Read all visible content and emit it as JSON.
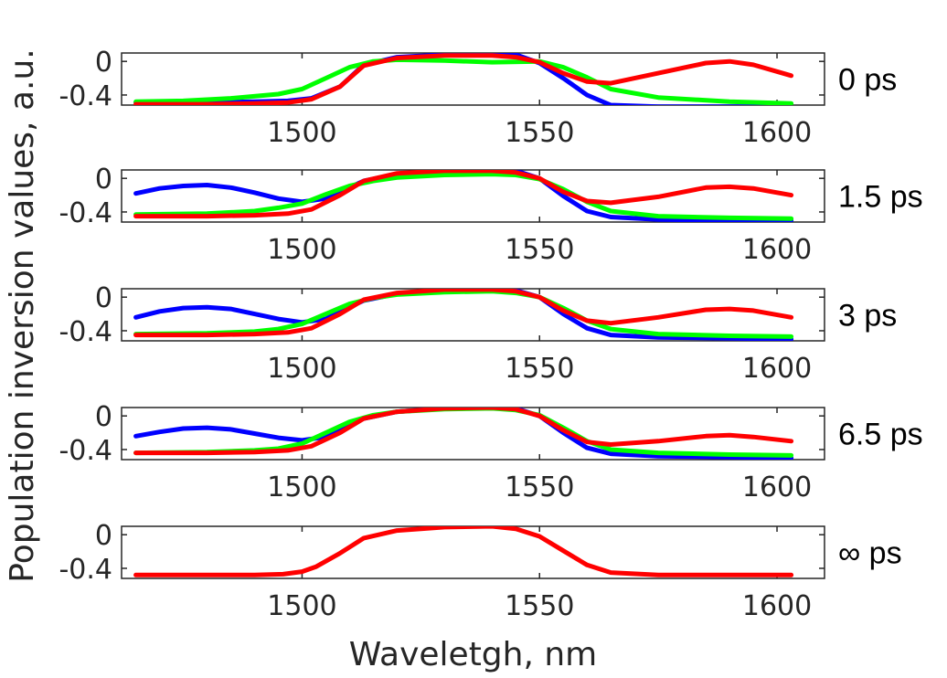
{
  "chart_data": {
    "type": "line",
    "ylabel": "Population inversion values, a.u.",
    "xlabel": "Waveletgh, nm",
    "xlim": [
      1462,
      1610
    ],
    "ylim": [
      -0.52,
      0.1
    ],
    "xticks": [
      1500,
      1550,
      1600
    ],
    "yticks": [
      0,
      -0.4
    ],
    "ytick_labels": [
      "0",
      "-0.4"
    ],
    "colors": {
      "blue": "#0000ff",
      "green": "#00ff00",
      "red": "#ff0000"
    },
    "grid": false,
    "panels": [
      {
        "label": "0 ps",
        "series": [
          {
            "color": "#0000ff",
            "x": [
              1465,
              1480,
              1490,
              1497,
              1502,
              1508,
              1513,
              1520,
              1530,
              1540,
              1545,
              1550,
              1555,
              1560,
              1565,
              1575,
              1590,
              1603
            ],
            "y": [
              -0.49,
              -0.49,
              -0.48,
              -0.47,
              -0.44,
              -0.3,
              -0.04,
              0.05,
              0.08,
              0.1,
              0.08,
              -0.02,
              -0.2,
              -0.4,
              -0.52,
              -0.54,
              -0.54,
              -0.54
            ]
          },
          {
            "color": "#00ff00",
            "x": [
              1465,
              1475,
              1485,
              1495,
              1500,
              1505,
              1510,
              1515,
              1520,
              1530,
              1540,
              1550,
              1555,
              1560,
              1565,
              1575,
              1590,
              1603
            ],
            "y": [
              -0.48,
              -0.47,
              -0.44,
              -0.39,
              -0.33,
              -0.2,
              -0.07,
              0.0,
              0.02,
              0.01,
              -0.01,
              0.0,
              -0.07,
              -0.19,
              -0.33,
              -0.43,
              -0.48,
              -0.5
            ]
          },
          {
            "color": "#ff0000",
            "x": [
              1465,
              1480,
              1490,
              1497,
              1502,
              1508,
              1513,
              1520,
              1530,
              1540,
              1545,
              1550,
              1555,
              1560,
              1565,
              1575,
              1585,
              1590,
              1595,
              1603
            ],
            "y": [
              -0.51,
              -0.51,
              -0.5,
              -0.49,
              -0.45,
              -0.3,
              -0.05,
              0.04,
              0.07,
              0.07,
              0.05,
              -0.01,
              -0.14,
              -0.24,
              -0.26,
              -0.14,
              -0.02,
              0.0,
              -0.04,
              -0.17
            ]
          }
        ]
      },
      {
        "label": "1.5 ps",
        "series": [
          {
            "color": "#0000ff",
            "x": [
              1465,
              1470,
              1475,
              1480,
              1485,
              1490,
              1495,
              1500,
              1505,
              1508,
              1513,
              1520,
              1530,
              1540,
              1545,
              1550,
              1555,
              1560,
              1565,
              1575,
              1590,
              1603
            ],
            "y": [
              -0.18,
              -0.12,
              -0.09,
              -0.08,
              -0.11,
              -0.17,
              -0.24,
              -0.28,
              -0.24,
              -0.16,
              -0.03,
              0.05,
              0.09,
              0.1,
              0.09,
              0.0,
              -0.21,
              -0.39,
              -0.46,
              -0.49,
              -0.5,
              -0.5
            ]
          },
          {
            "color": "#00ff00",
            "x": [
              1465,
              1480,
              1490,
              1495,
              1500,
              1505,
              1510,
              1515,
              1520,
              1530,
              1540,
              1545,
              1550,
              1555,
              1560,
              1565,
              1575,
              1590,
              1603
            ],
            "y": [
              -0.43,
              -0.42,
              -0.39,
              -0.35,
              -0.3,
              -0.19,
              -0.09,
              -0.03,
              0.01,
              0.04,
              0.05,
              0.04,
              -0.01,
              -0.13,
              -0.28,
              -0.39,
              -0.45,
              -0.47,
              -0.48
            ]
          },
          {
            "color": "#ff0000",
            "x": [
              1465,
              1480,
              1490,
              1497,
              1502,
              1508,
              1513,
              1520,
              1530,
              1540,
              1545,
              1550,
              1555,
              1560,
              1565,
              1575,
              1585,
              1590,
              1595,
              1603
            ],
            "y": [
              -0.45,
              -0.45,
              -0.44,
              -0.42,
              -0.37,
              -0.2,
              -0.03,
              0.06,
              0.09,
              0.09,
              0.07,
              0.0,
              -0.16,
              -0.27,
              -0.29,
              -0.22,
              -0.11,
              -0.1,
              -0.12,
              -0.2
            ]
          }
        ]
      },
      {
        "label": "3 ps",
        "series": [
          {
            "color": "#0000ff",
            "x": [
              1465,
              1470,
              1475,
              1480,
              1485,
              1490,
              1495,
              1500,
              1505,
              1508,
              1513,
              1520,
              1530,
              1540,
              1545,
              1550,
              1555,
              1560,
              1565,
              1575,
              1590,
              1603
            ],
            "y": [
              -0.24,
              -0.17,
              -0.13,
              -0.12,
              -0.14,
              -0.2,
              -0.26,
              -0.3,
              -0.26,
              -0.17,
              -0.04,
              0.04,
              0.08,
              0.09,
              0.08,
              0.0,
              -0.2,
              -0.37,
              -0.45,
              -0.48,
              -0.49,
              -0.5
            ]
          },
          {
            "color": "#00ff00",
            "x": [
              1465,
              1480,
              1490,
              1495,
              1500,
              1505,
              1510,
              1515,
              1520,
              1530,
              1540,
              1545,
              1550,
              1555,
              1560,
              1565,
              1575,
              1590,
              1603
            ],
            "y": [
              -0.44,
              -0.43,
              -0.41,
              -0.38,
              -0.32,
              -0.2,
              -0.08,
              -0.01,
              0.03,
              0.06,
              0.07,
              0.05,
              0.0,
              -0.13,
              -0.28,
              -0.38,
              -0.44,
              -0.46,
              -0.47
            ]
          },
          {
            "color": "#ff0000",
            "x": [
              1465,
              1480,
              1490,
              1497,
              1502,
              1508,
              1513,
              1520,
              1530,
              1540,
              1545,
              1550,
              1555,
              1560,
              1565,
              1575,
              1585,
              1590,
              1595,
              1603
            ],
            "y": [
              -0.45,
              -0.45,
              -0.44,
              -0.42,
              -0.37,
              -0.2,
              -0.03,
              0.05,
              0.09,
              0.09,
              0.07,
              0.0,
              -0.16,
              -0.28,
              -0.31,
              -0.24,
              -0.15,
              -0.14,
              -0.16,
              -0.24
            ]
          }
        ]
      },
      {
        "label": "6.5 ps",
        "series": [
          {
            "color": "#0000ff",
            "x": [
              1465,
              1470,
              1475,
              1480,
              1485,
              1490,
              1495,
              1500,
              1505,
              1508,
              1513,
              1520,
              1530,
              1540,
              1545,
              1550,
              1555,
              1560,
              1565,
              1575,
              1590,
              1603
            ],
            "y": [
              -0.24,
              -0.19,
              -0.15,
              -0.14,
              -0.16,
              -0.21,
              -0.26,
              -0.29,
              -0.25,
              -0.16,
              -0.03,
              0.05,
              0.09,
              0.1,
              0.09,
              0.0,
              -0.2,
              -0.38,
              -0.45,
              -0.48,
              -0.49,
              -0.5
            ]
          },
          {
            "color": "#00ff00",
            "x": [
              1465,
              1480,
              1490,
              1495,
              1500,
              1505,
              1510,
              1515,
              1520,
              1530,
              1540,
              1545,
              1550,
              1555,
              1560,
              1565,
              1575,
              1590,
              1603
            ],
            "y": [
              -0.44,
              -0.43,
              -0.41,
              -0.39,
              -0.33,
              -0.2,
              -0.07,
              0.01,
              0.05,
              0.08,
              0.09,
              0.07,
              0.01,
              -0.14,
              -0.3,
              -0.4,
              -0.44,
              -0.46,
              -0.47
            ]
          },
          {
            "color": "#ff0000",
            "x": [
              1465,
              1480,
              1490,
              1497,
              1502,
              1508,
              1513,
              1520,
              1530,
              1540,
              1545,
              1550,
              1555,
              1560,
              1565,
              1575,
              1585,
              1590,
              1595,
              1603
            ],
            "y": [
              -0.44,
              -0.44,
              -0.43,
              -0.41,
              -0.36,
              -0.2,
              -0.03,
              0.05,
              0.09,
              0.1,
              0.08,
              0.0,
              -0.17,
              -0.31,
              -0.34,
              -0.3,
              -0.24,
              -0.23,
              -0.25,
              -0.3
            ]
          }
        ]
      },
      {
        "label": "∞ ps",
        "series": [
          {
            "color": "#ff0000",
            "x": [
              1465,
              1480,
              1490,
              1496,
              1500,
              1503,
              1508,
              1513,
              1520,
              1530,
              1540,
              1545,
              1550,
              1555,
              1560,
              1565,
              1575,
              1590,
              1603
            ],
            "y": [
              -0.48,
              -0.48,
              -0.48,
              -0.47,
              -0.44,
              -0.38,
              -0.22,
              -0.04,
              0.05,
              0.09,
              0.1,
              0.07,
              -0.02,
              -0.19,
              -0.36,
              -0.45,
              -0.48,
              -0.48,
              -0.48
            ]
          }
        ]
      }
    ]
  }
}
